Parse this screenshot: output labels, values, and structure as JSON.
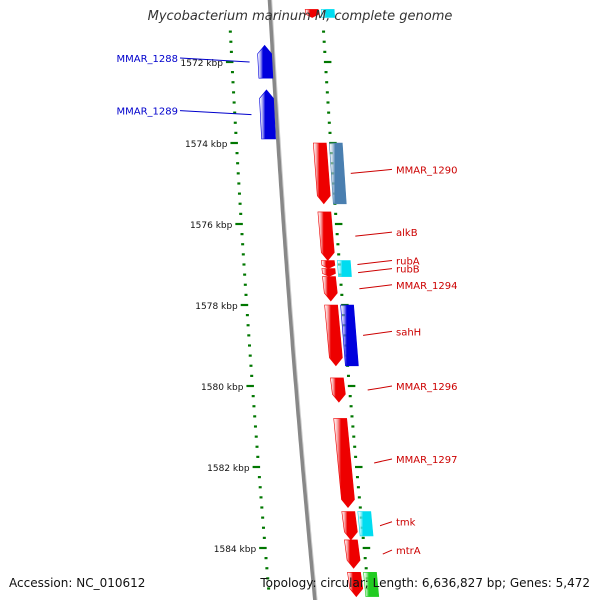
{
  "title": "Mycobacterium marinum M, complete genome",
  "footer": {
    "accession": "Accession: NC_010612",
    "topology": "Topology: circular; Length: 6,636,827 bp; Genes: 5,472"
  },
  "colors": {
    "forward_red": "#ee0000",
    "reverse_blue": "#0000dd",
    "steel_blue": "#4a7fb0",
    "cyan": "#00dcf0",
    "green": "#22cc22",
    "backbone": "#888888",
    "tick_green": "#007700",
    "label_blue": "#0000cc",
    "label_red": "#cc0000"
  },
  "scale": {
    "unit": "kbp",
    "major_ticks": [
      {
        "label": "1572 kbp",
        "kbp": 1572
      },
      {
        "label": "1574 kbp",
        "kbp": 1574
      },
      {
        "label": "1576 kbp",
        "kbp": 1576
      },
      {
        "label": "1578 kbp",
        "kbp": 1578
      },
      {
        "label": "1580 kbp",
        "kbp": 1580
      },
      {
        "label": "1582 kbp",
        "kbp": 1582
      },
      {
        "label": "1584 kbp",
        "kbp": 1584
      }
    ]
  },
  "genes": [
    {
      "name": "MMAR_1288",
      "strand": "reverse",
      "track": "outer-left",
      "color": "reverse_blue",
      "start_kbp": 1571.6,
      "end_kbp": 1572.4
    },
    {
      "name": "MMAR_1289",
      "strand": "reverse",
      "track": "outer-left",
      "color": "reverse_blue",
      "start_kbp": 1572.7,
      "end_kbp": 1573.9
    },
    {
      "name": "MMAR_1290",
      "strand": "forward",
      "track": "inner",
      "color": "forward_red",
      "start_kbp": 1574.0,
      "end_kbp": 1575.5
    },
    {
      "name": "",
      "strand": "forward",
      "track": "outer-right",
      "color": "steel_blue",
      "start_kbp": 1574.0,
      "end_kbp": 1575.5
    },
    {
      "name": "alkB",
      "strand": "forward",
      "track": "inner",
      "color": "forward_red",
      "start_kbp": 1575.7,
      "end_kbp": 1576.9
    },
    {
      "name": "rubA",
      "strand": "forward",
      "track": "inner",
      "color": "forward_red",
      "start_kbp": 1576.9,
      "end_kbp": 1577.1
    },
    {
      "name": "rubB",
      "strand": "forward",
      "track": "inner",
      "color": "forward_red",
      "start_kbp": 1577.1,
      "end_kbp": 1577.3
    },
    {
      "name": "",
      "strand": "forward",
      "track": "outer-right",
      "color": "cyan",
      "start_kbp": 1576.9,
      "end_kbp": 1577.3
    },
    {
      "name": "MMAR_1294",
      "strand": "forward",
      "track": "inner",
      "color": "forward_red",
      "start_kbp": 1577.3,
      "end_kbp": 1577.9
    },
    {
      "name": "sahH",
      "strand": "forward",
      "track": "inner",
      "color": "forward_red",
      "start_kbp": 1578.0,
      "end_kbp": 1579.5
    },
    {
      "name": "",
      "strand": "forward",
      "track": "outer-right",
      "color": "reverse_blue",
      "start_kbp": 1578.0,
      "end_kbp": 1579.5
    },
    {
      "name": "MMAR_1296",
      "strand": "forward",
      "track": "inner",
      "color": "forward_red",
      "start_kbp": 1579.8,
      "end_kbp": 1580.4
    },
    {
      "name": "MMAR_1297",
      "strand": "forward",
      "track": "inner",
      "color": "forward_red",
      "start_kbp": 1580.8,
      "end_kbp": 1583.0
    },
    {
      "name": "tmk",
      "strand": "forward",
      "track": "inner",
      "color": "forward_red",
      "start_kbp": 1583.1,
      "end_kbp": 1583.8
    },
    {
      "name": "",
      "strand": "forward",
      "track": "outer-right",
      "color": "cyan",
      "start_kbp": 1583.1,
      "end_kbp": 1583.7
    },
    {
      "name": "mtrA",
      "strand": "forward",
      "track": "inner",
      "color": "forward_red",
      "start_kbp": 1583.8,
      "end_kbp": 1584.5
    },
    {
      "name": "",
      "strand": "forward",
      "track": "inner",
      "color": "forward_red",
      "start_kbp": 1584.6,
      "end_kbp": 1585.2
    },
    {
      "name": "",
      "strand": "forward",
      "track": "outer-right",
      "color": "green",
      "start_kbp": 1584.6,
      "end_kbp": 1585.2
    },
    {
      "name": "",
      "strand": "forward",
      "track": "inner",
      "color": "forward_red",
      "start_kbp": 1570.7,
      "end_kbp": 1570.9
    },
    {
      "name": "",
      "strand": "forward",
      "track": "outer-right",
      "color": "cyan",
      "start_kbp": 1570.7,
      "end_kbp": 1570.9
    }
  ]
}
